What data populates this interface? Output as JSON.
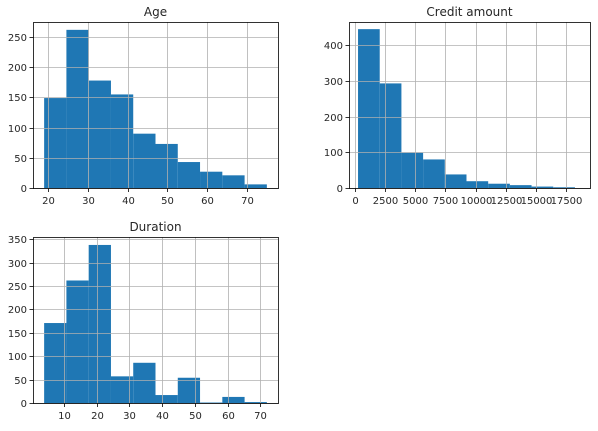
{
  "colors": {
    "bar": "#1f77b4",
    "grid": "#b0b0b0",
    "axis": "#000000"
  },
  "chart_data": [
    {
      "type": "bar",
      "title": "Age",
      "xlim": [
        16.2,
        77.8
      ],
      "ylim": [
        0,
        275
      ],
      "xticks": [
        20,
        30,
        40,
        50,
        60,
        70
      ],
      "yticks": [
        0,
        50,
        100,
        150,
        200,
        250
      ],
      "grid": true,
      "bins": [
        {
          "x0": 19.0,
          "x1": 24.6,
          "value": 149
        },
        {
          "x0": 24.6,
          "x1": 30.2,
          "value": 262
        },
        {
          "x0": 30.2,
          "x1": 35.8,
          "value": 178
        },
        {
          "x0": 35.8,
          "x1": 41.4,
          "value": 155
        },
        {
          "x0": 41.4,
          "x1": 47.0,
          "value": 90
        },
        {
          "x0": 47.0,
          "x1": 52.6,
          "value": 73
        },
        {
          "x0": 52.6,
          "x1": 58.2,
          "value": 43
        },
        {
          "x0": 58.2,
          "x1": 63.8,
          "value": 27
        },
        {
          "x0": 63.8,
          "x1": 69.4,
          "value": 21
        },
        {
          "x0": 69.4,
          "x1": 75.0,
          "value": 6
        }
      ]
    },
    {
      "type": "bar",
      "title": "Credit amount",
      "xlim": [
        -500,
        19500
      ],
      "ylim": [
        0,
        465
      ],
      "xticks": [
        0,
        2500,
        5000,
        7500,
        10000,
        12500,
        15000,
        17500
      ],
      "yticks": [
        0,
        100,
        200,
        300,
        400
      ],
      "grid": true,
      "bins": [
        {
          "x0": 250,
          "x1": 2050,
          "value": 445
        },
        {
          "x0": 2050,
          "x1": 3850,
          "value": 293
        },
        {
          "x0": 3850,
          "x1": 5650,
          "value": 99
        },
        {
          "x0": 5650,
          "x1": 7450,
          "value": 80
        },
        {
          "x0": 7450,
          "x1": 9250,
          "value": 38
        },
        {
          "x0": 9250,
          "x1": 11050,
          "value": 19
        },
        {
          "x0": 11050,
          "x1": 12850,
          "value": 12
        },
        {
          "x0": 12850,
          "x1": 14650,
          "value": 8
        },
        {
          "x0": 14650,
          "x1": 16450,
          "value": 4
        },
        {
          "x0": 16450,
          "x1": 18250,
          "value": 2
        }
      ]
    },
    {
      "type": "bar",
      "title": "Duration",
      "xlim": [
        0.6,
        75.4
      ],
      "ylim": [
        0,
        355
      ],
      "xticks": [
        10,
        20,
        30,
        40,
        50,
        60,
        70
      ],
      "yticks": [
        0,
        50,
        100,
        150,
        200,
        250,
        300,
        350
      ],
      "grid": true,
      "bins": [
        {
          "x0": 4.0,
          "x1": 10.8,
          "value": 171
        },
        {
          "x0": 10.8,
          "x1": 17.6,
          "value": 262
        },
        {
          "x0": 17.6,
          "x1": 24.4,
          "value": 338
        },
        {
          "x0": 24.4,
          "x1": 31.2,
          "value": 57
        },
        {
          "x0": 31.2,
          "x1": 38.0,
          "value": 86
        },
        {
          "x0": 38.0,
          "x1": 44.8,
          "value": 17
        },
        {
          "x0": 44.8,
          "x1": 51.6,
          "value": 54
        },
        {
          "x0": 51.6,
          "x1": 58.4,
          "value": 1
        },
        {
          "x0": 58.4,
          "x1": 65.2,
          "value": 13
        },
        {
          "x0": 65.2,
          "x1": 72.0,
          "value": 2
        }
      ]
    }
  ]
}
